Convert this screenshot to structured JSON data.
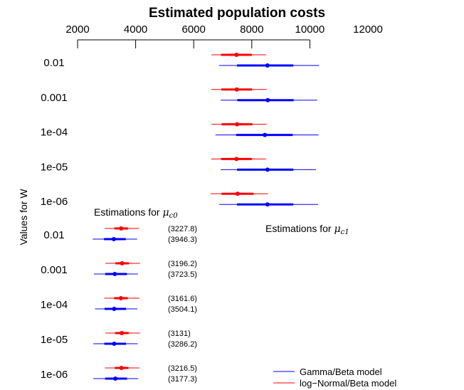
{
  "chart_data": {
    "type": "forest",
    "title": "Estimated population costs",
    "ylabel": "Values for W",
    "x_ticks": [
      2000,
      4000,
      6000,
      8000,
      10000,
      12000
    ],
    "xlim": [
      1800,
      12800
    ],
    "w_labels": [
      "0.01",
      "0.001",
      "1e-04",
      "1e-05",
      "1e-06"
    ],
    "legend": {
      "placement": "bottom-right",
      "entries": [
        {
          "name": "Gamma/Beta model",
          "color": "#0000ff"
        },
        {
          "name": "log−Normal/Beta model",
          "color": "#ff0000"
        }
      ]
    },
    "panels": [
      {
        "label_prefix": "Estimations for ",
        "label_symbol": "μ",
        "label_sub": "c0",
        "rows": [
          {
            "w": "0.01",
            "red": {
              "mean": 3500,
              "inner": [
                3270,
                3740
              ],
              "outer": [
                2930,
                4120
              ],
              "annotation": "(3227.8)"
            },
            "blue": {
              "mean": 3250,
              "inner": [
                2910,
                3660
              ],
              "outer": [
                2520,
                4050
              ],
              "annotation": "(3946.3)"
            }
          },
          {
            "w": "0.001",
            "red": {
              "mean": 3530,
              "inner": [
                3300,
                3770
              ],
              "outer": [
                2960,
                4150
              ],
              "annotation": "(3196.2)"
            },
            "blue": {
              "mean": 3280,
              "inner": [
                2950,
                3700
              ],
              "outer": [
                2560,
                4080
              ],
              "annotation": "(3723.5)"
            }
          },
          {
            "w": "1e-04",
            "red": {
              "mean": 3490,
              "inner": [
                3260,
                3730
              ],
              "outer": [
                2920,
                4130
              ],
              "annotation": "(3161.6)"
            },
            "blue": {
              "mean": 3260,
              "inner": [
                2930,
                3670
              ],
              "outer": [
                2600,
                4060
              ],
              "annotation": "(3504.1)"
            }
          },
          {
            "w": "1e-05",
            "red": {
              "mean": 3520,
              "inner": [
                3290,
                3760
              ],
              "outer": [
                2960,
                4140
              ],
              "annotation": "(3131)"
            },
            "blue": {
              "mean": 3260,
              "inner": [
                2920,
                3670
              ],
              "outer": [
                2540,
                4070
              ],
              "annotation": "(3286.2)"
            }
          },
          {
            "w": "1e-06",
            "red": {
              "mean": 3510,
              "inner": [
                3280,
                3750
              ],
              "outer": [
                2940,
                4130
              ],
              "annotation": "(3216.5)"
            },
            "blue": {
              "mean": 3300,
              "inner": [
                2950,
                3700
              ],
              "outer": [
                2540,
                4090
              ],
              "annotation": "(3177.3)"
            }
          }
        ]
      },
      {
        "label_prefix": "Estimations for ",
        "label_symbol": "μ",
        "label_sub": "c1",
        "rows": [
          {
            "w": "0.01",
            "red": {
              "mean": 7470,
              "inner": [
                6940,
                8000
              ],
              "outer": [
                6610,
                8490
              ]
            },
            "blue": {
              "mean": 8540,
              "inner": [
                7490,
                9430
              ],
              "outer": [
                6870,
                10320
              ]
            }
          },
          {
            "w": "0.001",
            "red": {
              "mean": 7480,
              "inner": [
                6950,
                8010
              ],
              "outer": [
                6600,
                8520
              ]
            },
            "blue": {
              "mean": 8550,
              "inner": [
                7500,
                9440
              ],
              "outer": [
                6930,
                10250
              ]
            }
          },
          {
            "w": "1e-04",
            "red": {
              "mean": 7490,
              "inner": [
                6960,
                8020
              ],
              "outer": [
                6610,
                8510
              ]
            },
            "blue": {
              "mean": 8450,
              "inner": [
                7460,
                9410
              ],
              "outer": [
                6750,
                10300
              ]
            }
          },
          {
            "w": "1e-05",
            "red": {
              "mean": 7470,
              "inner": [
                6940,
                8000
              ],
              "outer": [
                6600,
                8490
              ]
            },
            "blue": {
              "mean": 8540,
              "inner": [
                7490,
                9430
              ],
              "outer": [
                6930,
                10210
              ]
            }
          },
          {
            "w": "1e-06",
            "red": {
              "mean": 7510,
              "inner": [
                6960,
                8060
              ],
              "outer": [
                6580,
                8560
              ]
            },
            "blue": {
              "mean": 8540,
              "inner": [
                7490,
                9430
              ],
              "outer": [
                6880,
                10280
              ]
            }
          }
        ]
      }
    ]
  }
}
